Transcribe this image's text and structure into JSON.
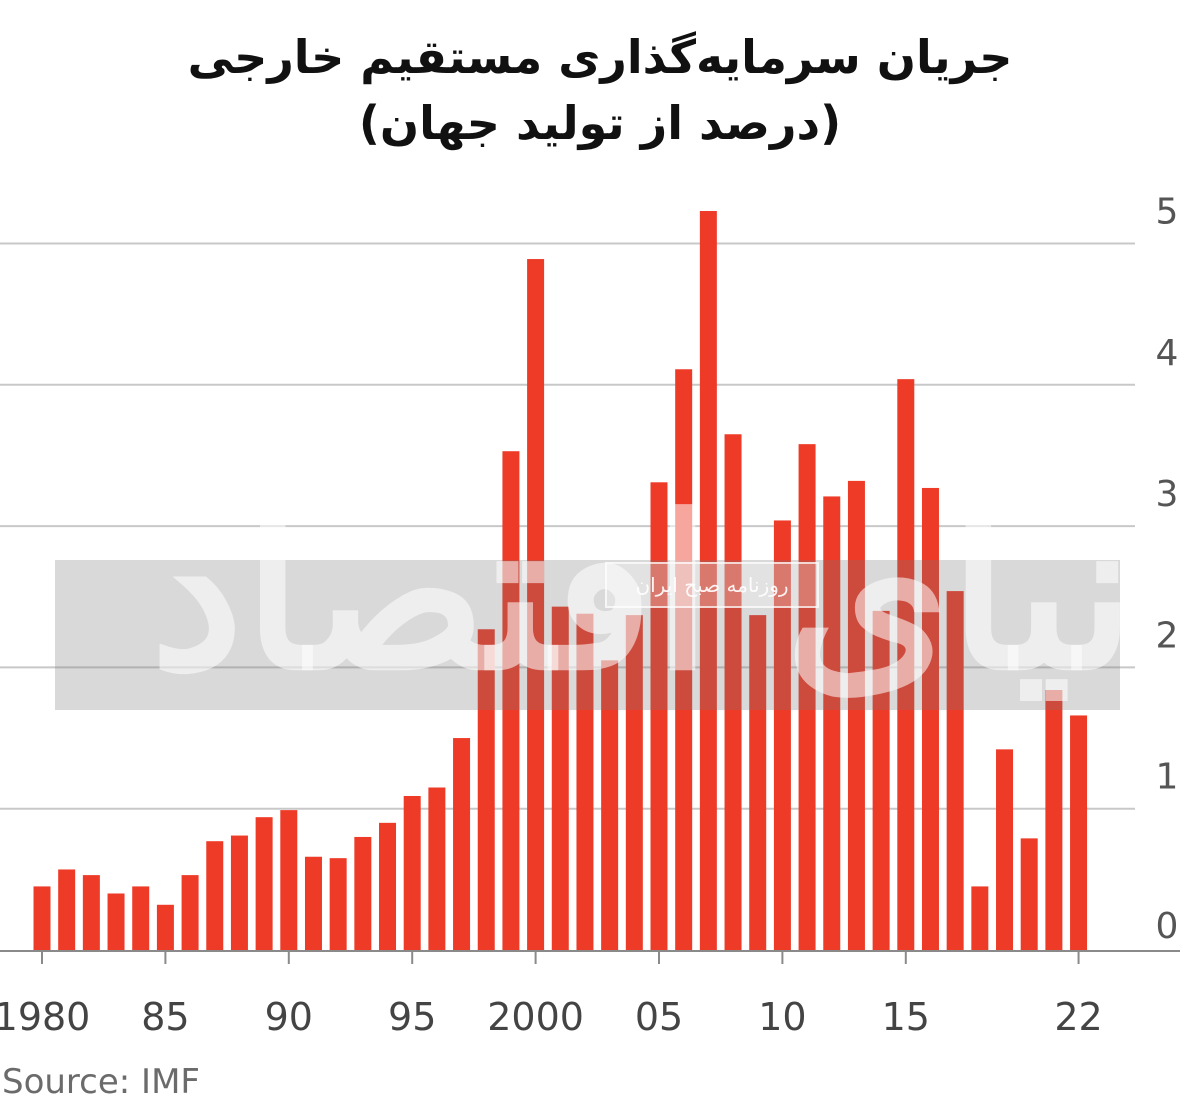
{
  "title_line1": "جریان سرمایه‌گذاری مستقیم خارجی",
  "title_line2": "(درصد از تولید جهان)",
  "source": "Source: IMF",
  "watermark": {
    "logo_text": "دنیای اقتصاد",
    "stamp_text": "روزنامه صبح ایران"
  },
  "colors": {
    "bar": "#ee3b28",
    "grid": "#c8c8c8",
    "axis": "#8a8a8a"
  },
  "chart_data": {
    "type": "bar",
    "ylim": [
      0,
      5.1
    ],
    "grid": true,
    "y_ticks": [
      "0",
      "1",
      "2",
      "3",
      "4",
      "5"
    ],
    "x_tick_labels": [
      "1980",
      "85",
      "90",
      "95",
      "2000",
      "05",
      "10",
      "15",
      "22"
    ],
    "x": [
      1980,
      1981,
      1982,
      1983,
      1984,
      1985,
      1986,
      1987,
      1988,
      1989,
      1990,
      1991,
      1992,
      1993,
      1994,
      1995,
      1996,
      1997,
      1998,
      1999,
      2000,
      2001,
      2002,
      2003,
      2004,
      2005,
      2006,
      2007,
      2008,
      2009,
      2010,
      2011,
      2012,
      2013,
      2014,
      2015,
      2016,
      2017,
      2018,
      2019,
      2020,
      2021,
      2022
    ],
    "values": [
      0.45,
      0.57,
      0.53,
      0.4,
      0.45,
      0.32,
      0.53,
      0.77,
      0.81,
      0.94,
      0.99,
      0.66,
      0.65,
      0.8,
      0.9,
      1.09,
      1.15,
      1.5,
      2.27,
      3.53,
      4.89,
      2.43,
      2.38,
      2.05,
      2.37,
      3.31,
      4.11,
      5.23,
      3.65,
      2.37,
      3.04,
      3.58,
      3.21,
      3.32,
      2.4,
      4.04,
      3.27,
      2.54,
      0.45,
      1.42,
      0.79,
      1.84,
      1.66
    ]
  }
}
